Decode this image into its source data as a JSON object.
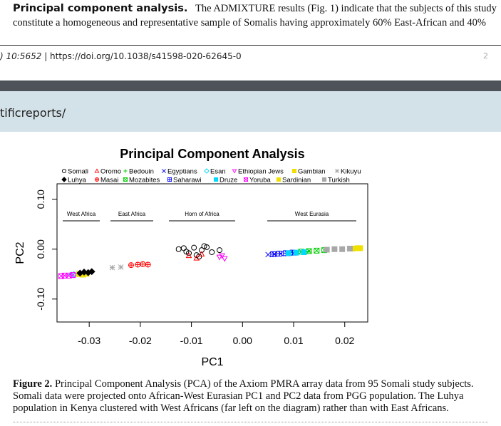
{
  "body_text": {
    "heading": "Principal component analysis.",
    "lines": [
      "The ADMIXTURE results (Fig. 1) indicate that the subjects of this study",
      "constitute a homogeneous and representative sample of Somalis having approximately 60% East-African and 40%"
    ]
  },
  "page_footer": {
    "volume": ") 10:5652",
    "doi": "| https://doi.org/10.1038/s41598-020-62645-0",
    "page_number": "2"
  },
  "banner": {
    "text": "tificreports/"
  },
  "chart_data": {
    "type": "scatter",
    "title": "Principal Component Analysis",
    "xlabel": "PC1",
    "ylabel": "PC2",
    "xlim": [
      -0.0363,
      0.0245
    ],
    "ylim": [
      -0.146,
      0.131
    ],
    "xticks": [
      -0.03,
      -0.02,
      -0.01,
      {
        "value": 0,
        "label": "0.00"
      },
      0.01,
      0.02
    ],
    "yticks": [
      {
        "value": -0.1,
        "label": "-0.10"
      },
      {
        "value": 0,
        "label": "0.00"
      },
      {
        "value": 0.1,
        "label": "0.10"
      }
    ],
    "annotations": [
      "West Africa",
      "East Africa",
      "Horn of Africa",
      "West Eurasia"
    ],
    "series": [
      {
        "name": "Somali",
        "color": "#000000",
        "marker": "circle",
        "x": [
          -0.0125,
          -0.011,
          -0.0095,
          -0.008,
          -0.007,
          -0.0105,
          -0.009,
          -0.006,
          -0.0045,
          -0.0115,
          -0.0085,
          -0.0075
        ],
        "values": [
          0.0,
          -0.005,
          0.003,
          -0.002,
          0.004,
          -0.008,
          -0.012,
          -0.006,
          -0.002,
          0.002,
          -0.015,
          0.006
        ]
      },
      {
        "name": "Oromo",
        "color": "#FF0000",
        "marker": "triangle",
        "x": [
          -0.0105,
          -0.009,
          -0.008
        ],
        "values": [
          -0.013,
          -0.018,
          -0.01
        ]
      },
      {
        "name": "Bedouin",
        "color": "#00CD00",
        "marker": "plus",
        "x": [
          0.0095,
          0.011,
          0.0125,
          0.013
        ],
        "values": [
          -0.006,
          -0.005,
          -0.005,
          -0.004
        ]
      },
      {
        "name": "Egyptians",
        "color": "#0000FF",
        "marker": "cross",
        "x": [
          0.005,
          0.0062,
          0.0075,
          0.0088,
          0.01
        ],
        "values": [
          -0.011,
          -0.01,
          -0.009,
          -0.009,
          -0.008
        ]
      },
      {
        "name": "Esan",
        "color": "#00D8FF",
        "marker": "diamond",
        "x": [
          -0.0335,
          -0.033
        ],
        "values": [
          -0.052,
          -0.051
        ]
      },
      {
        "name": "Ethiopian Jews",
        "color": "#FF00FF",
        "marker": "triangle-down",
        "x": [
          -0.0045,
          -0.0035,
          -0.004
        ],
        "values": [
          -0.016,
          -0.019,
          -0.013
        ]
      },
      {
        "name": "Gambian",
        "color": "#F0E000",
        "marker": "filled-square",
        "x": [
          -0.032,
          -0.0312,
          -0.0305
        ],
        "values": [
          -0.05,
          -0.051,
          -0.049
        ]
      },
      {
        "name": "Kikuyu",
        "color": "#A8A8A8",
        "marker": "asterisk",
        "x": [
          -0.0255,
          -0.0238
        ],
        "values": [
          -0.037,
          -0.036
        ]
      },
      {
        "name": "Luhya",
        "color": "#000000",
        "marker": "filled-diamond",
        "x": [
          -0.0318,
          -0.031,
          -0.0302,
          -0.0295
        ],
        "values": [
          -0.048,
          -0.046,
          -0.047,
          -0.045
        ]
      },
      {
        "name": "Masai",
        "color": "#FF0000",
        "marker": "circle-plus",
        "x": [
          -0.0218,
          -0.0205,
          -0.0195,
          -0.0185
        ],
        "values": [
          -0.032,
          -0.031,
          -0.03,
          -0.031
        ]
      },
      {
        "name": "Mozabites",
        "color": "#00CD00",
        "marker": "square-x",
        "x": [
          0.0115,
          0.013,
          0.0145,
          0.016
        ],
        "values": [
          -0.005,
          -0.004,
          -0.003,
          -0.002
        ]
      },
      {
        "name": "Saharawi",
        "color": "#0000FF",
        "marker": "square-plus",
        "x": [
          0.006,
          0.0072,
          0.0085,
          0.0098
        ],
        "values": [
          -0.01,
          -0.009,
          -0.008,
          -0.007
        ]
      },
      {
        "name": "Druze",
        "color": "#00D8FF",
        "marker": "filled-square",
        "x": [
          0.009,
          0.0105,
          0.012
        ],
        "values": [
          -0.008,
          -0.007,
          -0.006
        ]
      },
      {
        "name": "Yoruba",
        "color": "#FF00FF",
        "marker": "square-x",
        "x": [
          -0.0355,
          -0.0348,
          -0.034,
          -0.0332
        ],
        "values": [
          -0.054,
          -0.053,
          -0.053,
          -0.052
        ]
      },
      {
        "name": "Sardinian",
        "color": "#F0E000",
        "marker": "filled-square",
        "x": [
          0.0215,
          0.0225,
          0.023
        ],
        "values": [
          0.001,
          0.002,
          0.002
        ]
      },
      {
        "name": "Turkish",
        "color": "#A8A8A8",
        "marker": "filled-square",
        "x": [
          0.0165,
          0.018,
          0.0195,
          0.021
        ],
        "values": [
          -0.001,
          0.0,
          0.0,
          0.001
        ]
      }
    ]
  },
  "caption": {
    "label": "Figure 2.",
    "lines": [
      "Principal Component Analysis (PCA) of the Axiom PMRA array data from 95 Somali study subjects.",
      "Somali data were projected onto African-West Eurasian PC1 and PC2 data from PGG population. The Luhya",
      "population in Kenya clustered with West Africans (far left on the diagram) rather than with East Africans."
    ]
  }
}
